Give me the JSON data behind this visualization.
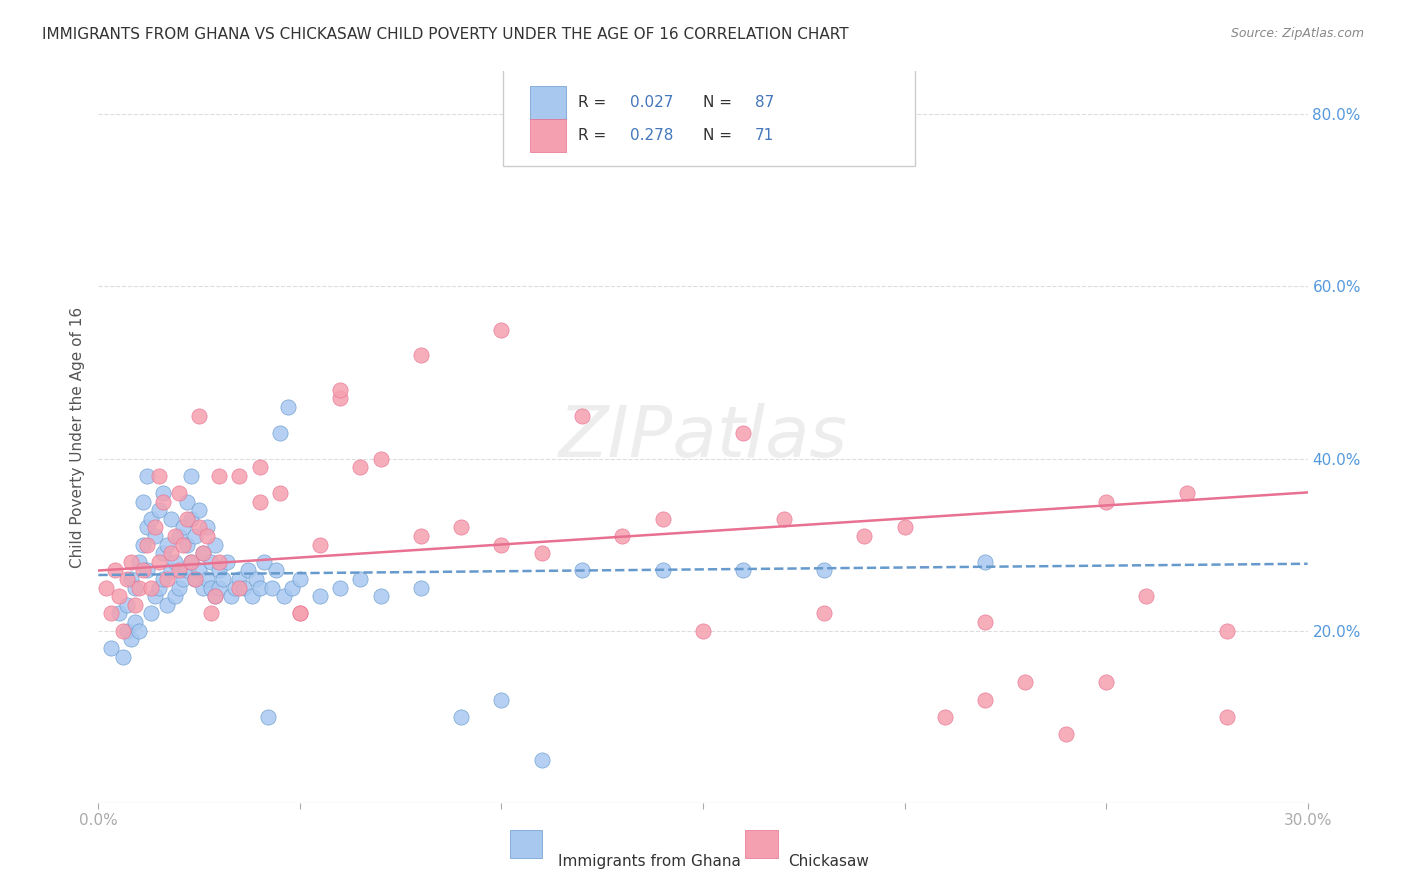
{
  "title": "IMMIGRANTS FROM GHANA VS CHICKASAW CHILD POVERTY UNDER THE AGE OF 16 CORRELATION CHART",
  "source": "Source: ZipAtlas.com",
  "xlabel": "",
  "ylabel": "Child Poverty Under the Age of 16",
  "xlim": [
    0.0,
    0.3
  ],
  "ylim": [
    0.0,
    0.85
  ],
  "xticks": [
    0.0,
    0.05,
    0.1,
    0.15,
    0.2,
    0.25,
    0.3
  ],
  "xticklabels": [
    "0.0%",
    "",
    "",
    "",
    "",
    "",
    "30.0%"
  ],
  "yticks_right": [
    0.2,
    0.4,
    0.6,
    0.8
  ],
  "ytick_right_labels": [
    "20.0%",
    "40.0%",
    "60.0%",
    "80.0%"
  ],
  "legend_r1": "R = 0.027",
  "legend_n1": "N = 87",
  "legend_r2": "R = 0.278",
  "legend_n2": "N = 71",
  "watermark": "ZIPatlas",
  "blue_color": "#a8c8f0",
  "blue_line_color": "#6699cc",
  "pink_color": "#f5a0b0",
  "pink_line_color": "#e87090",
  "blue_r": 0.027,
  "pink_r": 0.278,
  "blue_n": 87,
  "pink_n": 71,
  "label1": "Immigrants from Ghana",
  "label2": "Chickasaw",
  "title_color": "#333333",
  "axis_color": "#aaaaaa",
  "grid_color": "#dddddd",
  "right_tick_color": "#5599dd",
  "blue_scatter_x": [
    0.003,
    0.005,
    0.006,
    0.007,
    0.007,
    0.008,
    0.008,
    0.009,
    0.009,
    0.01,
    0.01,
    0.011,
    0.011,
    0.012,
    0.012,
    0.012,
    0.013,
    0.013,
    0.014,
    0.014,
    0.015,
    0.015,
    0.016,
    0.016,
    0.016,
    0.017,
    0.017,
    0.018,
    0.018,
    0.019,
    0.019,
    0.02,
    0.02,
    0.021,
    0.021,
    0.022,
    0.022,
    0.022,
    0.023,
    0.023,
    0.023,
    0.024,
    0.024,
    0.025,
    0.025,
    0.026,
    0.026,
    0.027,
    0.027,
    0.028,
    0.028,
    0.029,
    0.029,
    0.03,
    0.03,
    0.031,
    0.032,
    0.033,
    0.034,
    0.035,
    0.036,
    0.037,
    0.038,
    0.039,
    0.04,
    0.041,
    0.042,
    0.043,
    0.044,
    0.045,
    0.046,
    0.047,
    0.048,
    0.05,
    0.055,
    0.06,
    0.065,
    0.07,
    0.08,
    0.09,
    0.1,
    0.11,
    0.12,
    0.14,
    0.16,
    0.18,
    0.22
  ],
  "blue_scatter_y": [
    0.18,
    0.22,
    0.17,
    0.2,
    0.23,
    0.19,
    0.26,
    0.21,
    0.25,
    0.2,
    0.28,
    0.3,
    0.35,
    0.27,
    0.32,
    0.38,
    0.22,
    0.33,
    0.24,
    0.31,
    0.25,
    0.34,
    0.26,
    0.29,
    0.36,
    0.23,
    0.3,
    0.27,
    0.33,
    0.24,
    0.28,
    0.25,
    0.31,
    0.26,
    0.32,
    0.27,
    0.3,
    0.35,
    0.28,
    0.33,
    0.38,
    0.26,
    0.31,
    0.27,
    0.34,
    0.25,
    0.29,
    0.26,
    0.32,
    0.25,
    0.28,
    0.24,
    0.3,
    0.25,
    0.27,
    0.26,
    0.28,
    0.24,
    0.25,
    0.26,
    0.25,
    0.27,
    0.24,
    0.26,
    0.25,
    0.28,
    0.1,
    0.25,
    0.27,
    0.43,
    0.24,
    0.46,
    0.25,
    0.26,
    0.24,
    0.25,
    0.26,
    0.24,
    0.25,
    0.1,
    0.12,
    0.05,
    0.27,
    0.27,
    0.27,
    0.27,
    0.28
  ],
  "pink_scatter_x": [
    0.002,
    0.003,
    0.004,
    0.005,
    0.006,
    0.007,
    0.008,
    0.009,
    0.01,
    0.011,
    0.012,
    0.013,
    0.014,
    0.015,
    0.016,
    0.017,
    0.018,
    0.019,
    0.02,
    0.021,
    0.022,
    0.023,
    0.024,
    0.025,
    0.026,
    0.027,
    0.028,
    0.029,
    0.03,
    0.035,
    0.04,
    0.045,
    0.05,
    0.055,
    0.06,
    0.065,
    0.07,
    0.08,
    0.09,
    0.1,
    0.11,
    0.12,
    0.13,
    0.14,
    0.15,
    0.16,
    0.17,
    0.18,
    0.19,
    0.2,
    0.21,
    0.22,
    0.23,
    0.24,
    0.25,
    0.26,
    0.27,
    0.28,
    0.015,
    0.02,
    0.025,
    0.03,
    0.035,
    0.04,
    0.05,
    0.06,
    0.08,
    0.1,
    0.22,
    0.25,
    0.28
  ],
  "pink_scatter_y": [
    0.25,
    0.22,
    0.27,
    0.24,
    0.2,
    0.26,
    0.28,
    0.23,
    0.25,
    0.27,
    0.3,
    0.25,
    0.32,
    0.28,
    0.35,
    0.26,
    0.29,
    0.31,
    0.27,
    0.3,
    0.33,
    0.28,
    0.26,
    0.32,
    0.29,
    0.31,
    0.22,
    0.24,
    0.28,
    0.38,
    0.35,
    0.36,
    0.22,
    0.3,
    0.47,
    0.39,
    0.4,
    0.31,
    0.32,
    0.3,
    0.29,
    0.45,
    0.31,
    0.33,
    0.2,
    0.43,
    0.33,
    0.22,
    0.31,
    0.32,
    0.1,
    0.12,
    0.14,
    0.08,
    0.35,
    0.24,
    0.36,
    0.2,
    0.38,
    0.36,
    0.45,
    0.38,
    0.25,
    0.39,
    0.22,
    0.48,
    0.52,
    0.55,
    0.21,
    0.14,
    0.1
  ]
}
